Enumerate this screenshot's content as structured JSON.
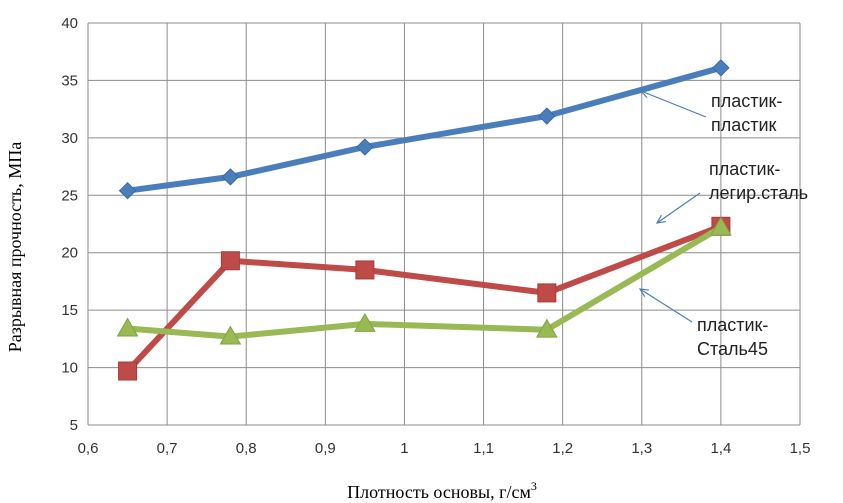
{
  "chart_data": {
    "type": "line",
    "xlabel": "Плотность основы, г/см",
    "xlabel_sup": "3",
    "ylabel": "Разрывная прочность, МПа",
    "xlim": [
      0.6,
      1.5
    ],
    "ylim": [
      5,
      40
    ],
    "x_ticks": [
      "0,6",
      "0,7",
      "0,8",
      "0,9",
      "1",
      "1,1",
      "1,2",
      "1,3",
      "1,4",
      "1,5"
    ],
    "y_ticks": [
      "5",
      "10",
      "15",
      "20",
      "25",
      "30",
      "35",
      "40"
    ],
    "grid": true,
    "series": [
      {
        "color": "#4a7ebb",
        "marker": "diamond",
        "x": [
          0.65,
          0.78,
          0.95,
          1.18,
          1.4
        ],
        "y": [
          25.4,
          26.6,
          29.2,
          31.9,
          36.1
        ]
      },
      {
        "color": "#be4b48",
        "marker": "square",
        "x": [
          0.65,
          0.78,
          0.95,
          1.18,
          1.4
        ],
        "y": [
          9.7,
          19.3,
          18.5,
          16.5,
          22.3
        ]
      },
      {
        "color": "#98b954",
        "marker": "triangle",
        "x": [
          0.65,
          0.78,
          0.95,
          1.18,
          1.4
        ],
        "y": [
          13.4,
          12.7,
          13.8,
          13.3,
          22.2
        ]
      }
    ],
    "annotations": [
      {
        "lines": [
          "пластик-",
          "пластик"
        ]
      },
      {
        "lines": [
          "пластик-",
          "легир.сталь"
        ]
      },
      {
        "lines": [
          "пластик-",
          "Сталь45"
        ]
      }
    ]
  }
}
